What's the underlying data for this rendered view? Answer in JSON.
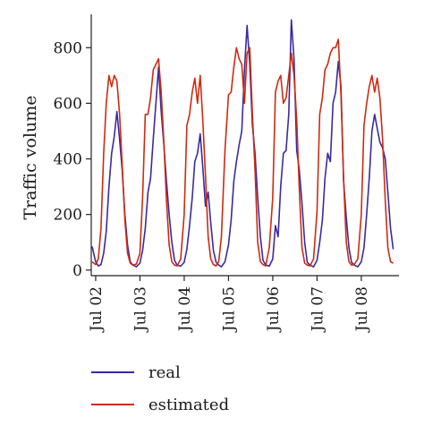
{
  "chart_data": {
    "type": "line",
    "title": "",
    "xlabel": "",
    "ylabel": "Traffic volume",
    "ylim": [
      -20,
      920
    ],
    "yticks": [
      0,
      200,
      400,
      600,
      800
    ],
    "xlim": [
      1.9,
      8.85
    ],
    "xticks": [
      {
        "value": 2,
        "label": "Jul 02"
      },
      {
        "value": 3,
        "label": "Jul 03"
      },
      {
        "value": 4,
        "label": "Jul 04"
      },
      {
        "value": 5,
        "label": "Jul 05"
      },
      {
        "value": 6,
        "label": "Jul 06"
      },
      {
        "value": 7,
        "label": "Jul 07"
      },
      {
        "value": 8,
        "label": "Jul 08"
      }
    ],
    "grid": false,
    "legend_position": "bottom-left",
    "series": [
      {
        "name": "real",
        "color": "#3a2aa0",
        "x": [
          1.92,
          2.0,
          2.06,
          2.12,
          2.18,
          2.24,
          2.3,
          2.36,
          2.42,
          2.48,
          2.54,
          2.6,
          2.66,
          2.72,
          2.78,
          2.84,
          2.92,
          3.0,
          3.06,
          3.12,
          3.18,
          3.24,
          3.3,
          3.36,
          3.42,
          3.48,
          3.54,
          3.6,
          3.66,
          3.72,
          3.78,
          3.84,
          3.92,
          4.0,
          4.06,
          4.12,
          4.18,
          4.24,
          4.3,
          4.36,
          4.42,
          4.48,
          4.54,
          4.6,
          4.66,
          4.72,
          4.78,
          4.84,
          4.92,
          5.0,
          5.06,
          5.12,
          5.18,
          5.24,
          5.3,
          5.36,
          5.42,
          5.48,
          5.54,
          5.6,
          5.66,
          5.72,
          5.78,
          5.84,
          5.92,
          6.0,
          6.06,
          6.12,
          6.18,
          6.24,
          6.3,
          6.36,
          6.42,
          6.48,
          6.54,
          6.6,
          6.66,
          6.72,
          6.78,
          6.84,
          6.92,
          7.0,
          7.06,
          7.12,
          7.18,
          7.24,
          7.3,
          7.36,
          7.42,
          7.48,
          7.54,
          7.6,
          7.66,
          7.72,
          7.78,
          7.84,
          7.92,
          8.0,
          8.06,
          8.12,
          8.18,
          8.24,
          8.3,
          8.36,
          8.42,
          8.48,
          8.54,
          8.6,
          8.66,
          8.72
        ],
        "y": [
          85,
          30,
          15,
          20,
          60,
          140,
          300,
          420,
          480,
          570,
          470,
          360,
          200,
          90,
          30,
          18,
          12,
          25,
          70,
          150,
          280,
          330,
          470,
          600,
          730,
          570,
          450,
          320,
          200,
          100,
          35,
          18,
          14,
          28,
          75,
          160,
          260,
          390,
          420,
          490,
          370,
          230,
          280,
          170,
          70,
          28,
          18,
          12,
          30,
          90,
          180,
          320,
          390,
          450,
          500,
          720,
          880,
          740,
          520,
          420,
          260,
          120,
          35,
          18,
          14,
          40,
          160,
          120,
          300,
          420,
          430,
          560,
          900,
          760,
          430,
          360,
          240,
          100,
          28,
          18,
          12,
          35,
          100,
          180,
          330,
          420,
          390,
          600,
          640,
          750,
          660,
          320,
          190,
          80,
          28,
          18,
          12,
          30,
          80,
          200,
          330,
          500,
          560,
          510,
          460,
          440,
          400,
          280,
          150,
          75
        ]
      },
      {
        "name": "estimated",
        "color": "#d02a10",
        "x": [
          1.92,
          2.0,
          2.06,
          2.12,
          2.18,
          2.24,
          2.3,
          2.36,
          2.42,
          2.48,
          2.54,
          2.6,
          2.66,
          2.72,
          2.78,
          2.84,
          2.92,
          3.0,
          3.06,
          3.12,
          3.18,
          3.24,
          3.3,
          3.36,
          3.42,
          3.48,
          3.54,
          3.6,
          3.66,
          3.72,
          3.78,
          3.84,
          3.92,
          4.0,
          4.06,
          4.12,
          4.18,
          4.24,
          4.3,
          4.36,
          4.42,
          4.48,
          4.54,
          4.6,
          4.66,
          4.72,
          4.78,
          4.84,
          4.92,
          5.0,
          5.06,
          5.12,
          5.18,
          5.24,
          5.3,
          5.36,
          5.42,
          5.48,
          5.54,
          5.6,
          5.66,
          5.72,
          5.78,
          5.84,
          5.92,
          6.0,
          6.06,
          6.12,
          6.18,
          6.24,
          6.3,
          6.36,
          6.42,
          6.48,
          6.54,
          6.6,
          6.66,
          6.72,
          6.78,
          6.84,
          6.92,
          7.0,
          7.06,
          7.12,
          7.18,
          7.24,
          7.3,
          7.36,
          7.42,
          7.48,
          7.54,
          7.6,
          7.66,
          7.72,
          7.78,
          7.84,
          7.92,
          8.0,
          8.06,
          8.12,
          8.18,
          8.24,
          8.3,
          8.36,
          8.42,
          8.48,
          8.54,
          8.6,
          8.66,
          8.72
        ],
        "y": [
          30,
          20,
          40,
          150,
          420,
          600,
          700,
          660,
          700,
          680,
          560,
          380,
          180,
          60,
          25,
          18,
          22,
          60,
          260,
          560,
          560,
          620,
          720,
          740,
          760,
          640,
          460,
          250,
          90,
          30,
          18,
          15,
          40,
          200,
          520,
          560,
          640,
          690,
          600,
          700,
          540,
          340,
          120,
          40,
          20,
          15,
          30,
          120,
          430,
          630,
          640,
          730,
          800,
          760,
          740,
          600,
          780,
          800,
          560,
          360,
          100,
          30,
          20,
          15,
          80,
          260,
          640,
          680,
          700,
          600,
          620,
          700,
          780,
          700,
          540,
          290,
          80,
          25,
          18,
          15,
          40,
          210,
          560,
          620,
          720,
          740,
          780,
          800,
          800,
          830,
          630,
          330,
          100,
          30,
          18,
          20,
          40,
          200,
          520,
          600,
          660,
          700,
          640,
          690,
          620,
          470,
          250,
          80,
          30,
          25
        ]
      }
    ]
  }
}
